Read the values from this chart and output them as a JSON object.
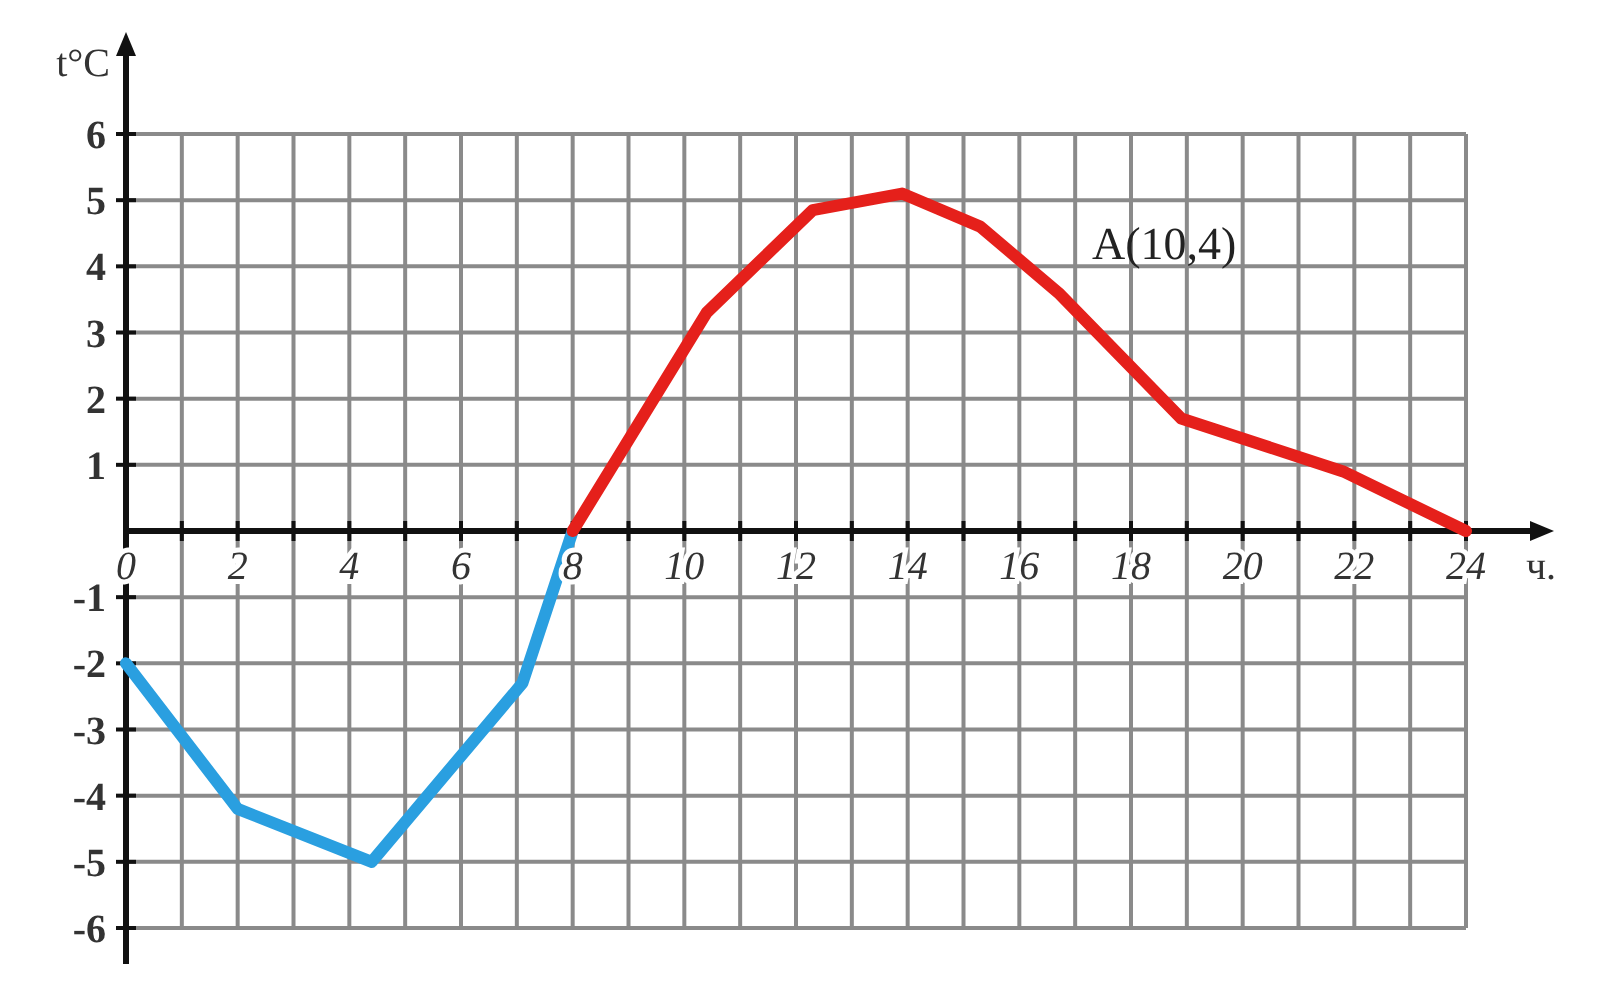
{
  "chart_data": {
    "type": "line",
    "xlabel": "ч.",
    "ylabel": "t°C",
    "annotations": [
      "A(10,4)"
    ],
    "xlim": [
      0,
      24
    ],
    "ylim": [
      -6,
      6
    ],
    "xticks": [
      0,
      {
        "value": 1,
        "label": null
      },
      2,
      {
        "value": 3,
        "label": null
      },
      4,
      {
        "value": 5,
        "label": null
      },
      6,
      {
        "value": 7,
        "label": null
      },
      8,
      {
        "value": 9,
        "label": null
      },
      10,
      {
        "value": 11,
        "label": null
      },
      12,
      {
        "value": 13,
        "label": null
      },
      14,
      {
        "value": 15,
        "label": null
      },
      16,
      {
        "value": 17,
        "label": null
      },
      18,
      {
        "value": 19,
        "label": null
      },
      20,
      {
        "value": 21,
        "label": null
      },
      22,
      {
        "value": 23,
        "label": null
      },
      24
    ],
    "yticks": [
      -6,
      -5,
      -4,
      -3,
      -2,
      -1,
      1,
      2,
      3,
      4,
      5,
      6
    ],
    "grid": true,
    "marker": "none",
    "line_style": "solid",
    "series": [
      {
        "color": "#2a9fe0",
        "x": [
          0,
          2,
          4.4,
          7.1,
          8
        ],
        "values": [
          -2,
          -4.2,
          -5,
          -2.3,
          0
        ]
      },
      {
        "color": "#e5201b",
        "x": [
          8,
          10.4,
          12.3,
          13.9,
          15.3,
          16.7,
          18.9,
          21.8,
          24
        ],
        "values": [
          0,
          3.3,
          4.85,
          5.1,
          4.6,
          3.6,
          1.7,
          0.9,
          0
        ]
      }
    ]
  }
}
